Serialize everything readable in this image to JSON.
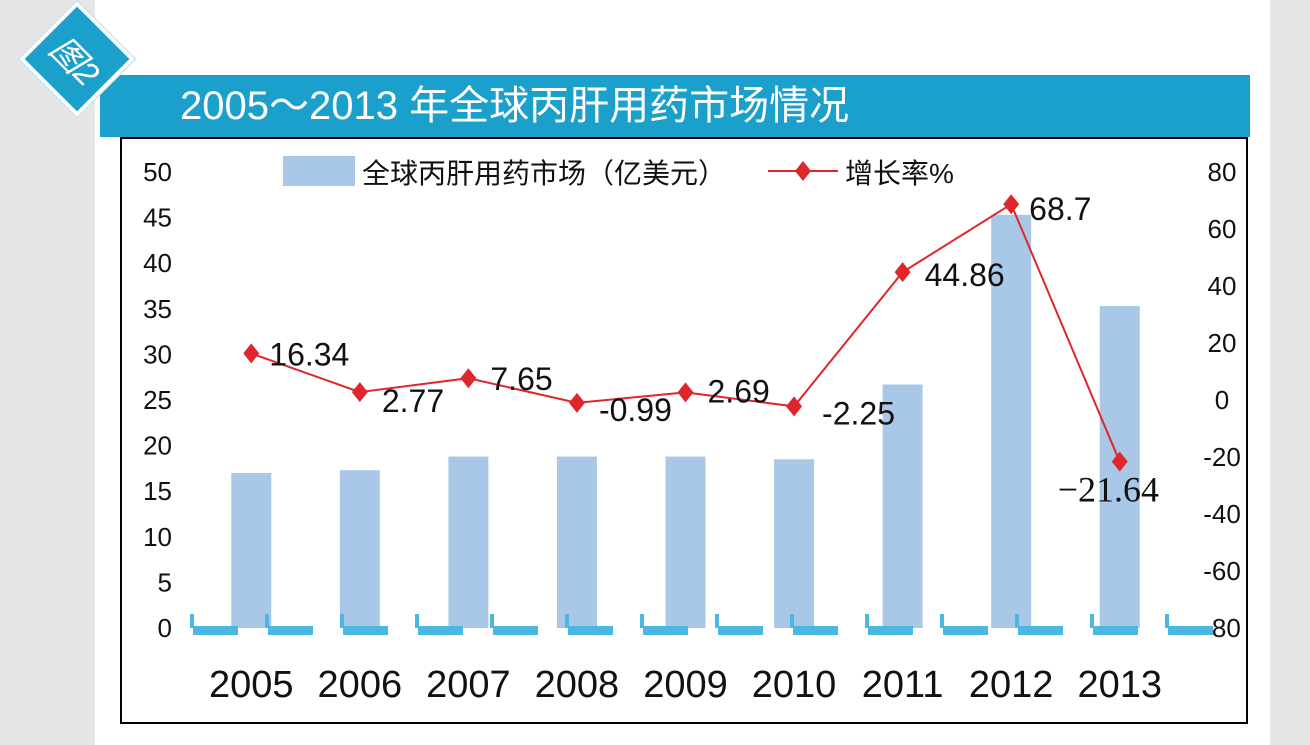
{
  "figure": {
    "badge_label": "图2",
    "title": "2005～2013 年全球丙肝用药市场情况"
  },
  "colors": {
    "title_bar": "#1ba0cc",
    "bar": "#a9c8e8",
    "line": "#e0262d",
    "marker": "#e0262d",
    "baseline_dash": "#4ab8e0"
  },
  "chart_data": {
    "type": "bar",
    "categories": [
      "2005",
      "2006",
      "2007",
      "2008",
      "2009",
      "2010",
      "2011",
      "2012",
      "2013"
    ],
    "series": [
      {
        "name": "全球丙肝用药市场（亿美元）",
        "type": "bar",
        "axis": "left",
        "values": [
          17,
          17.3,
          18.8,
          18.8,
          18.8,
          18.5,
          26.7,
          45.3,
          35.3
        ]
      },
      {
        "name": "增长率%",
        "type": "line",
        "axis": "right",
        "values": [
          16.34,
          2.77,
          7.65,
          -0.99,
          2.69,
          -2.25,
          44.86,
          68.7,
          -21.64
        ],
        "labels": [
          "16.34",
          "2.77",
          "7.65",
          "-0.99",
          "2.69",
          "-2.25",
          "44.86",
          "68.7",
          "−21.64"
        ]
      }
    ],
    "y_left": {
      "range": [
        0,
        50
      ],
      "ticks": [
        "0",
        "5",
        "10",
        "15",
        "20",
        "25",
        "30",
        "35",
        "40",
        "45",
        "50"
      ]
    },
    "y_right": {
      "range": [
        -80,
        80
      ],
      "ticks": [
        "-80",
        "-60",
        "-40",
        "-20",
        "0",
        "20",
        "40",
        "60",
        "80"
      ]
    },
    "legend": {
      "position": "top",
      "bar_label": "全球丙肝用药市场（亿美元）",
      "line_label": "增长率%"
    },
    "grid": false
  }
}
